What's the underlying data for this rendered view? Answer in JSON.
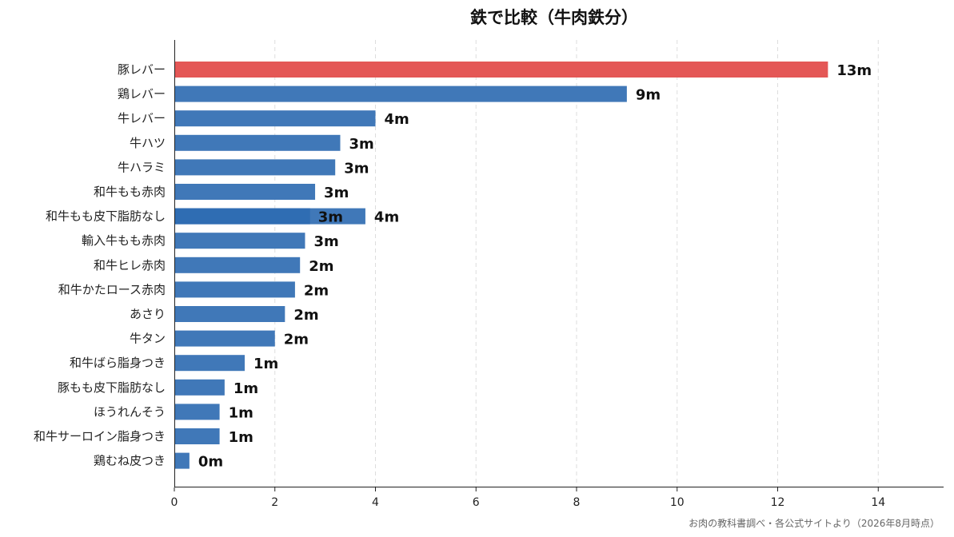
{
  "chart_data": {
    "type": "bar",
    "orientation": "horizontal",
    "title": "鉄で比較（牛肉鉄分）",
    "xlabel": "",
    "ylabel": "",
    "xlim": [
      0,
      15.3
    ],
    "xticks": [
      0,
      2,
      4,
      6,
      8,
      10,
      12,
      14
    ],
    "grid": true,
    "categories": [
      "豚レバー",
      "鶏レバー",
      "牛レバー",
      "牛ハツ",
      "牛ハラミ",
      "和牛もも赤肉",
      "和牛もも皮下脂肪なし",
      "輸入牛もも赤肉",
      "和牛ヒレ赤肉",
      "和牛かたロース赤肉",
      "あさり",
      "牛タン",
      "和牛ばら脂身つき",
      "豚もも皮下脂肪なし",
      "ほうれんそう",
      "和牛サーロイン脂身つき",
      "鶏むね皮つき"
    ],
    "values": [
      13.0,
      9.0,
      4.0,
      3.3,
      3.2,
      2.8,
      3.8,
      2.6,
      2.5,
      2.4,
      2.2,
      2.0,
      1.4,
      1.0,
      0.9,
      0.9,
      0.3
    ],
    "value_labels": [
      "13m",
      "9m",
      "4m",
      "3m",
      "3m",
      "3m",
      "4m",
      "3m",
      "2m",
      "2m",
      "2m",
      "2m",
      "1m",
      "1m",
      "1m",
      "1m",
      "0m"
    ],
    "highlight_index": 0,
    "colors": {
      "highlight": "#e45756",
      "default": "#4078b8",
      "inner_segment": "#2f6db3"
    },
    "inner_segment": {
      "index": 6,
      "from": 2.7,
      "to": 3.8,
      "label": "3m"
    },
    "source": "お肉の教科書調べ・各公式サイトより（2026年8月時点）"
  }
}
